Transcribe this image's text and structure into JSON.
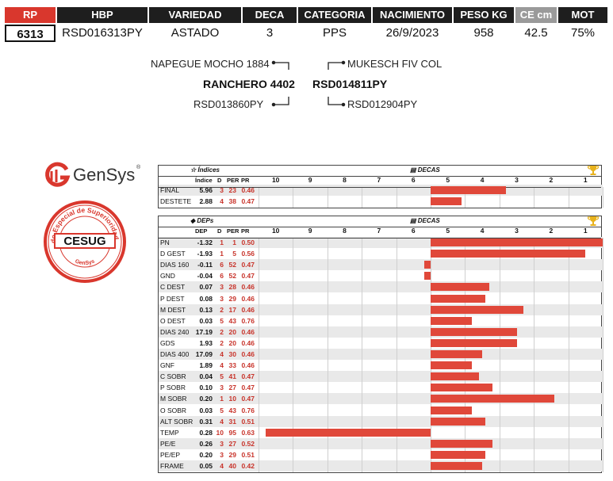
{
  "header": {
    "columns": [
      "RP",
      "HBP",
      "VARIEDAD",
      "DECA",
      "CATEGORIA",
      "NACIMIENTO",
      "PESO KG",
      "CE cm",
      "MOT"
    ],
    "values": [
      "6313",
      "RSD016313PY",
      "ASTADO",
      "3",
      "PPS",
      "26/9/2023",
      "958",
      "42.5",
      "75%"
    ],
    "colors": {
      "rp": "#d9372d",
      "dark": "#1e1e1e",
      "grey": "#9a9a9a"
    }
  },
  "pedigree": {
    "sire_sire": "NAPEGUE MOCHO 1884",
    "sire": "RANCHERO 4402",
    "sire_dam": "RSD013860PY",
    "dam_sire": "MUKESCH FIV COL",
    "dam": "RSD014811PY",
    "dam_dam": "RSD012904PY"
  },
  "logos": {
    "gensys": "GenSys",
    "cesug_center": "CESUG",
    "cesug_ring": "Certificado Especial de Superioridad Genética",
    "cesug_bottom": "GenSys"
  },
  "indices_table": {
    "title": "Índices",
    "decas_label": "DECAS",
    "col_headers": [
      "Índice",
      "D",
      "PER",
      "PR"
    ],
    "ticks": [
      "10",
      "9",
      "8",
      "7",
      "6",
      "5",
      "4",
      "3",
      "2",
      "1"
    ],
    "rows": [
      {
        "label": "FINAL",
        "v": "5.96",
        "d": "3",
        "per": "23",
        "pr": "0.46",
        "deca": 3.3
      },
      {
        "label": "DESTETE",
        "v": "2.88",
        "d": "4",
        "per": "38",
        "pr": "0.47",
        "deca": 4.6
      }
    ]
  },
  "deps_table": {
    "title": "DEPs",
    "decas_label": "DECAS",
    "col_headers": [
      "DEP",
      "D",
      "PER",
      "PR"
    ],
    "ticks": [
      "10",
      "9",
      "8",
      "7",
      "6",
      "5",
      "4",
      "3",
      "2",
      "1"
    ],
    "rows": [
      {
        "label": "PN",
        "v": "-1.32",
        "d": "1",
        "per": "1",
        "pr": "0.50",
        "deca": 0.5
      },
      {
        "label": "D GEST",
        "v": "-1.93",
        "d": "1",
        "per": "5",
        "pr": "0.56",
        "deca": 1.0
      },
      {
        "label": "DIAS 160",
        "v": "-0.11",
        "d": "6",
        "per": "52",
        "pr": "0.47",
        "deca": 5.2
      },
      {
        "label": "GND",
        "v": "-0.04",
        "d": "6",
        "per": "52",
        "pr": "0.47",
        "deca": 5.2
      },
      {
        "label": "C DEST",
        "v": "0.07",
        "d": "3",
        "per": "28",
        "pr": "0.46",
        "deca": 3.8
      },
      {
        "label": "P DEST",
        "v": "0.08",
        "d": "3",
        "per": "29",
        "pr": "0.46",
        "deca": 3.9
      },
      {
        "label": "M DEST",
        "v": "0.13",
        "d": "2",
        "per": "17",
        "pr": "0.46",
        "deca": 2.8
      },
      {
        "label": "O DEST",
        "v": "0.03",
        "d": "5",
        "per": "43",
        "pr": "0.76",
        "deca": 4.3
      },
      {
        "label": "DIAS 240",
        "v": "17.19",
        "d": "2",
        "per": "20",
        "pr": "0.46",
        "deca": 3.0
      },
      {
        "label": "GDS",
        "v": "1.93",
        "d": "2",
        "per": "20",
        "pr": "0.46",
        "deca": 3.0
      },
      {
        "label": "DIAS 400",
        "v": "17.09",
        "d": "4",
        "per": "30",
        "pr": "0.46",
        "deca": 4.0
      },
      {
        "label": "GNF",
        "v": "1.89",
        "d": "4",
        "per": "33",
        "pr": "0.46",
        "deca": 4.3
      },
      {
        "label": "C SOBR",
        "v": "0.04",
        "d": "5",
        "per": "41",
        "pr": "0.47",
        "deca": 4.1
      },
      {
        "label": "P SOBR",
        "v": "0.10",
        "d": "3",
        "per": "27",
        "pr": "0.47",
        "deca": 3.7
      },
      {
        "label": "M SOBR",
        "v": "0.20",
        "d": "1",
        "per": "10",
        "pr": "0.47",
        "deca": 1.9
      },
      {
        "label": "O SOBR",
        "v": "0.03",
        "d": "5",
        "per": "43",
        "pr": "0.76",
        "deca": 4.3
      },
      {
        "label": "ALT SOBR",
        "v": "0.31",
        "d": "4",
        "per": "31",
        "pr": "0.51",
        "deca": 3.9
      },
      {
        "label": "TEMP",
        "v": "0.28",
        "d": "10",
        "per": "95",
        "pr": "0.63",
        "deca": 9.6
      },
      {
        "label": "PE/E",
        "v": "0.26",
        "d": "3",
        "per": "27",
        "pr": "0.52",
        "deca": 3.7
      },
      {
        "label": "PE/EP",
        "v": "0.20",
        "d": "3",
        "per": "29",
        "pr": "0.51",
        "deca": 3.9
      },
      {
        "label": "FRAME",
        "v": "0.05",
        "d": "4",
        "per": "40",
        "pr": "0.42",
        "deca": 4.0
      }
    ]
  }
}
